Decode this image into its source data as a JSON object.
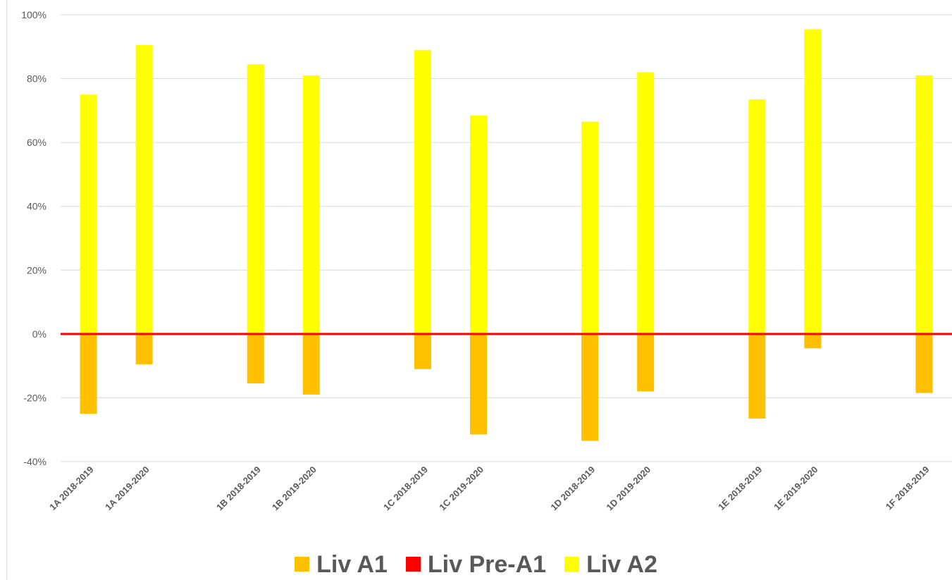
{
  "chart_data": {
    "type": "bar",
    "stacked": true,
    "categories": [
      "1A 2018-2019",
      "1A 2019-2020",
      "",
      "1B 2018-2019",
      "1B 2019-2020",
      "",
      "1C 2018-2019",
      "1C 2019-2020",
      "",
      "1D 2018-2019",
      "1D 2019-2020",
      "",
      "1E 2018-2019",
      "1E 2019-2020",
      "",
      "1F 2018-2019"
    ],
    "series": [
      {
        "name": "Liv A1",
        "color": "#FFC000",
        "values": [
          -25,
          -9.5,
          null,
          -15.5,
          -19,
          null,
          -11,
          -31.5,
          null,
          -33.5,
          -18,
          null,
          -26.5,
          -4.5,
          null,
          -18.5
        ]
      },
      {
        "name": "Liv Pre-A1",
        "color": "#FF0000",
        "values": [
          0,
          0,
          null,
          0,
          0,
          null,
          0,
          0,
          null,
          0,
          0,
          null,
          0,
          0,
          null,
          0
        ]
      },
      {
        "name": "Liv A2",
        "color": "#FFFF00",
        "values": [
          75,
          90.5,
          null,
          84.5,
          81,
          null,
          89,
          68.5,
          null,
          66.5,
          82,
          null,
          73.5,
          95.5,
          null,
          81
        ]
      }
    ],
    "ylim": [
      -40,
      100
    ],
    "yticks": [
      "100%",
      "80%",
      "60%",
      "40%",
      "20%",
      "0%",
      "-20%",
      "-40%"
    ],
    "ytick_values": [
      100,
      80,
      60,
      40,
      20,
      0,
      -20,
      -40
    ],
    "grid": true,
    "zero_line_color": "#FF0000",
    "legend_position": "bottom"
  },
  "legend": {
    "items": [
      {
        "label": "Liv A1",
        "color": "#FFC000"
      },
      {
        "label": "Liv Pre-A1",
        "color": "#FF0000"
      },
      {
        "label": "Liv A2",
        "color": "#FFFF00"
      }
    ]
  }
}
